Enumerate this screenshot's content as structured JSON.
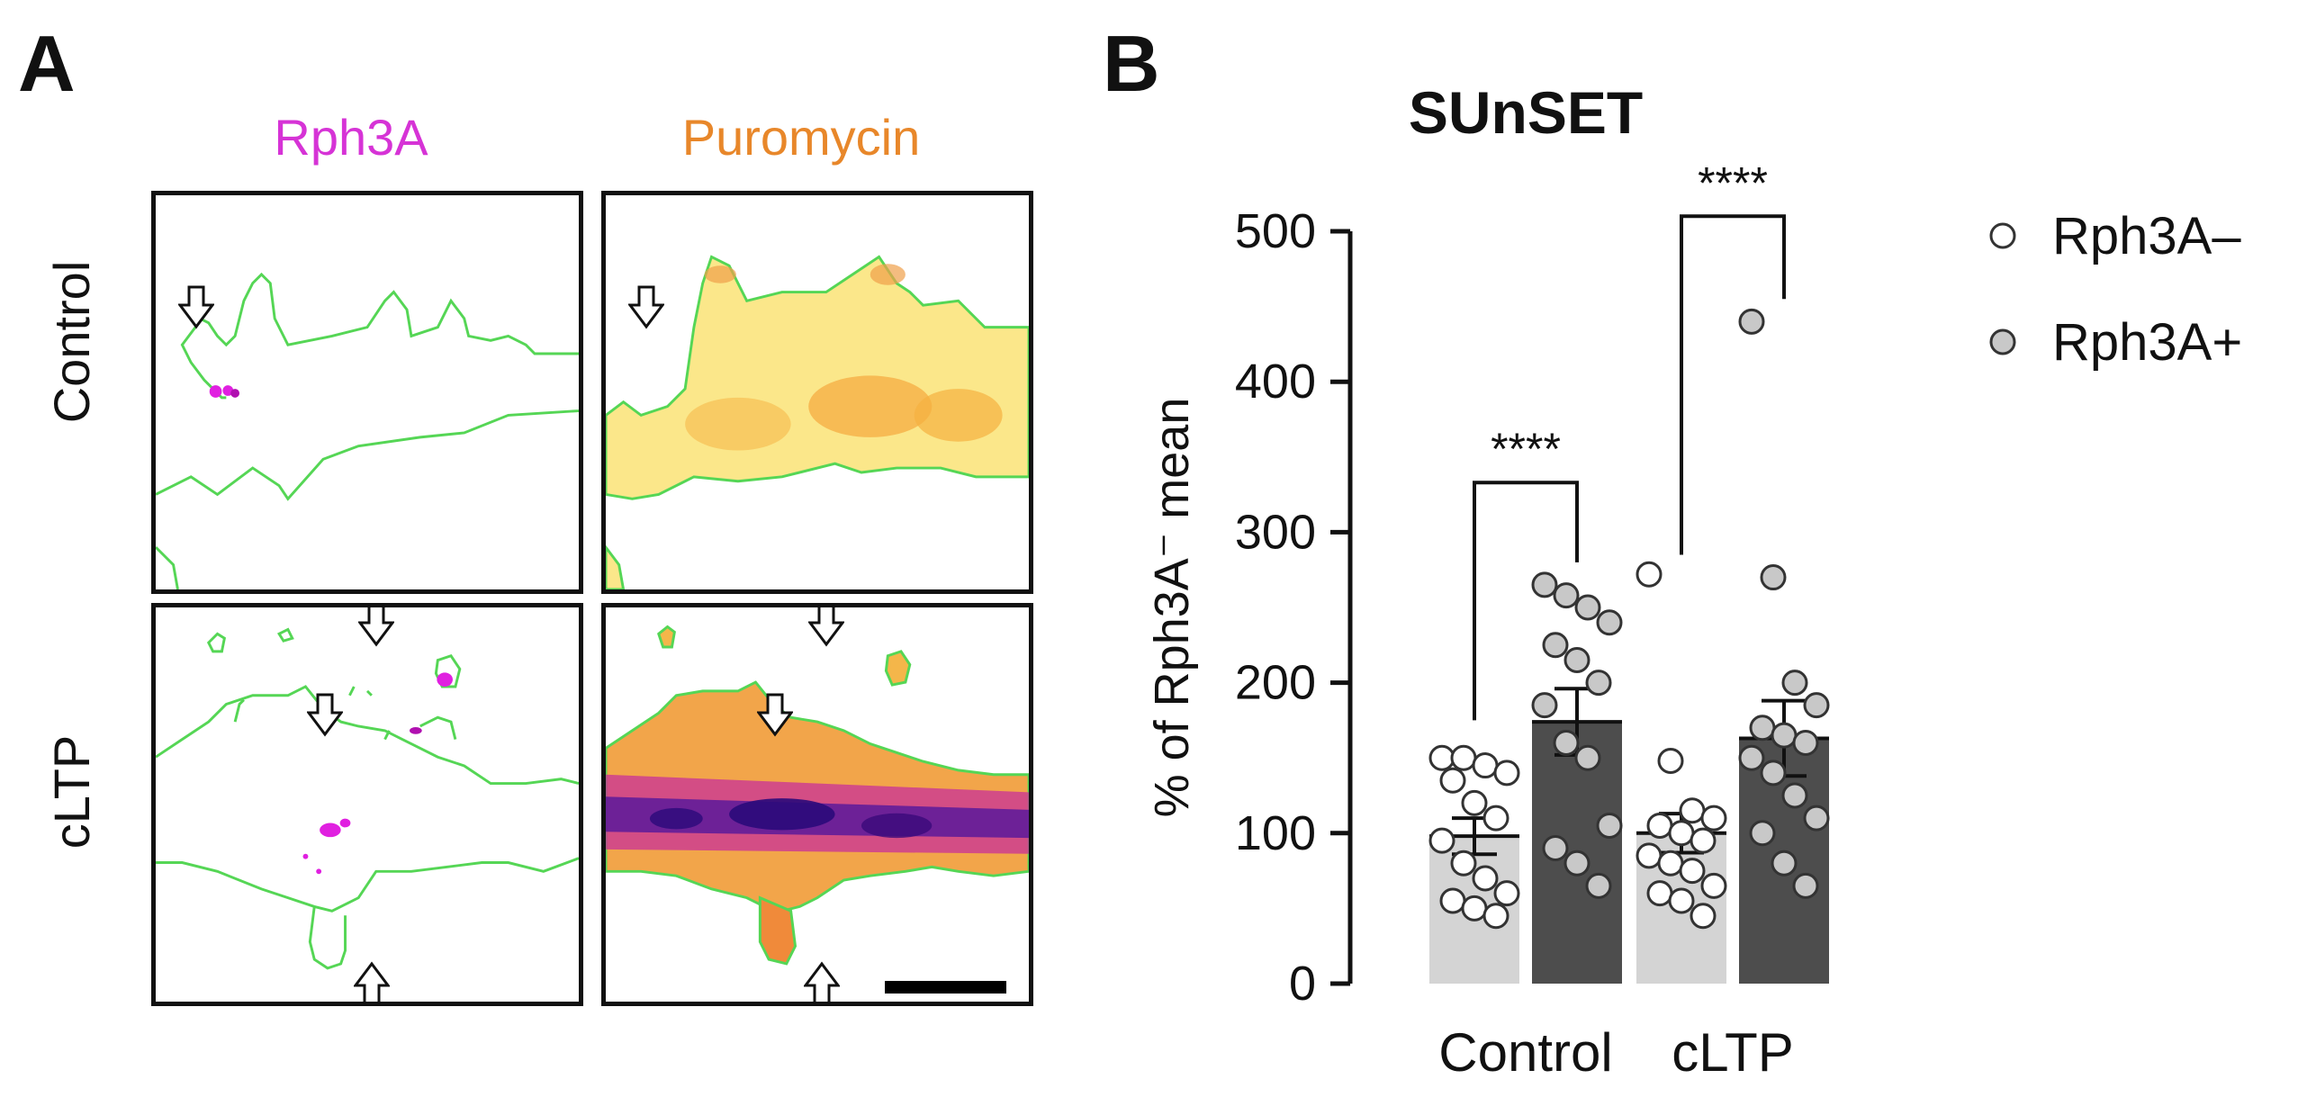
{
  "panel_a": {
    "label": "A",
    "columns": [
      {
        "label": "Rph3A",
        "color": "#d633d6"
      },
      {
        "label": "Puromycin",
        "color": "#e8872a"
      }
    ],
    "rows": [
      "Control",
      "cLTP"
    ]
  },
  "panel_b": {
    "label": "B"
  },
  "chart_data": {
    "type": "bar",
    "title": "SUnSET",
    "ylabel": "% of Rph3A⁻ mean",
    "xlabel": "",
    "ylim": [
      0,
      500
    ],
    "yticks": [
      0,
      100,
      200,
      300,
      400,
      500
    ],
    "categories": [
      "Control",
      "cLTP"
    ],
    "series": [
      {
        "name": "Rph3A–",
        "bar_color": "#d4d4d4",
        "marker_color": "#ffffff",
        "means": [
          98,
          100
        ],
        "sem": [
          12,
          13
        ],
        "points": [
          [
            150,
            150,
            145,
            140,
            135,
            120,
            110,
            95,
            80,
            70,
            60,
            55,
            50,
            45
          ],
          [
            272,
            148,
            115,
            110,
            105,
            100,
            95,
            85,
            80,
            75,
            65,
            60,
            55,
            45
          ]
        ]
      },
      {
        "name": "Rph3A+",
        "bar_color": "#4d4d4d",
        "marker_color": "#c8c8c8",
        "means": [
          174,
          163
        ],
        "sem": [
          22,
          25
        ],
        "points": [
          [
            265,
            258,
            250,
            240,
            225,
            215,
            200,
            185,
            160,
            150,
            105,
            90,
            80,
            65
          ],
          [
            440,
            270,
            200,
            185,
            170,
            165,
            160,
            150,
            140,
            125,
            110,
            100,
            80,
            65
          ]
        ]
      }
    ],
    "significance": [
      {
        "category": "Control",
        "label": "****"
      },
      {
        "category": "cLTP",
        "label": "****"
      }
    ],
    "legend_position": "top-right"
  }
}
